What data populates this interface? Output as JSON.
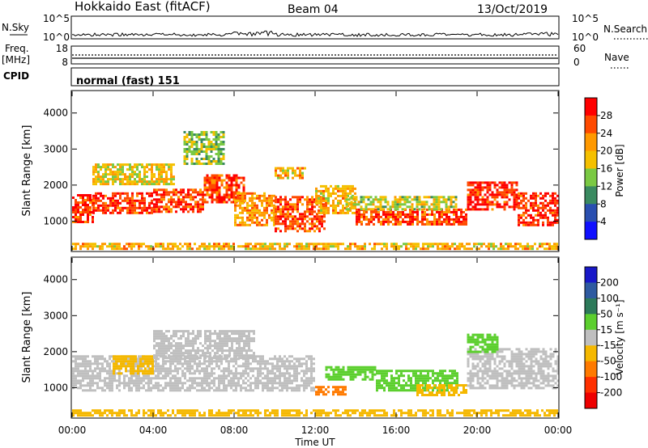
{
  "header": {
    "title": "Hokkaido East (fitACF)",
    "beam": "Beam 04",
    "date": "13/Oct/2019"
  },
  "panels": {
    "nsky_label": "N.Sky",
    "nsky_ticks": [
      "10^5",
      "10^0"
    ],
    "nsearch_label": "N.Search",
    "nsearch_ticks": [
      "10^5",
      "10^0"
    ],
    "freq_label_1": "Freq.",
    "freq_label_2": "[MHz]",
    "freq_ticks": [
      "18",
      "8"
    ],
    "nave_label": "Nave",
    "nave_ticks": [
      "60",
      "0"
    ],
    "cpid_label": "CPID",
    "cpid_value": "normal (fast) 151"
  },
  "axes": {
    "ylabel": "Slant Range [km]",
    "yticks": [
      "4000",
      "3000",
      "2000",
      "1000"
    ],
    "xlabel": "Time UT",
    "xticks": [
      "00:00",
      "04:00",
      "08:00",
      "12:00",
      "16:00",
      "20:00",
      "00:00"
    ]
  },
  "colorbars": {
    "power": {
      "label": "Power [dB]",
      "ticks": [
        "28",
        "24",
        "20",
        "16",
        "12",
        "8",
        "4"
      ],
      "colors": [
        "#ff0000",
        "#ff4a00",
        "#ff9900",
        "#f5c000",
        "#7ac943",
        "#3a8a60",
        "#2a4fb0",
        "#1010ff"
      ]
    },
    "velocity": {
      "label": "Velocity [m s⁻¹]",
      "ticks": [
        "200",
        "100",
        "50",
        "15",
        "-15",
        "-50",
        "-100",
        "-200"
      ],
      "colors": [
        "#1818c8",
        "#2e5aa0",
        "#2d7a5a",
        "#5ccf2e",
        "#bfbfbf",
        "#f5b800",
        "#ff7a00",
        "#ff3000",
        "#ee0000"
      ]
    }
  },
  "chart_data": [
    {
      "type": "heatmap",
      "title": "",
      "ylabel": "Slant Range [km]",
      "xlabel": "",
      "x_range_hours": [
        0,
        24
      ],
      "y_range_km": [
        180,
        4600
      ],
      "color_variable": "Power [dB]",
      "bands": [
        {
          "t0": 0.0,
          "t1": 1.0,
          "r0": 1000,
          "r1": 1750,
          "value": 28
        },
        {
          "t0": 1.0,
          "t1": 4.0,
          "r0": 1200,
          "r1": 1800,
          "value": 28
        },
        {
          "t0": 4.0,
          "t1": 6.5,
          "r0": 1250,
          "r1": 1900,
          "value": 27
        },
        {
          "t0": 6.5,
          "t1": 8.5,
          "r0": 1500,
          "r1": 2300,
          "value": 27
        },
        {
          "t0": 8.0,
          "t1": 10.0,
          "r0": 900,
          "r1": 1800,
          "value": 22
        },
        {
          "t0": 10.0,
          "t1": 12.5,
          "r0": 700,
          "r1": 1700,
          "value": 26
        },
        {
          "t0": 12.0,
          "t1": 14.0,
          "r0": 1200,
          "r1": 2000,
          "value": 20
        },
        {
          "t0": 14.0,
          "t1": 19.5,
          "r0": 900,
          "r1": 1350,
          "value": 27
        },
        {
          "t0": 13.5,
          "t1": 19.0,
          "r0": 1350,
          "r1": 1700,
          "value": 16
        },
        {
          "t0": 19.5,
          "t1": 22.0,
          "r0": 1300,
          "r1": 2100,
          "value": 28
        },
        {
          "t0": 22.0,
          "t1": 24.0,
          "r0": 900,
          "r1": 1800,
          "value": 28
        },
        {
          "t0": 5.5,
          "t1": 7.5,
          "r0": 2600,
          "r1": 3500,
          "value": 14
        },
        {
          "t0": 1.0,
          "t1": 5.0,
          "r0": 2000,
          "r1": 2600,
          "value": 18
        },
        {
          "t0": 10.0,
          "t1": 11.5,
          "r0": 2200,
          "r1": 2500,
          "value": 20
        },
        {
          "t0": 0.0,
          "t1": 24.0,
          "r0": 200,
          "r1": 400,
          "value": 20
        }
      ]
    },
    {
      "type": "heatmap",
      "title": "",
      "ylabel": "Slant Range [km]",
      "xlabel": "Time UT",
      "x_range_hours": [
        0,
        24
      ],
      "y_range_km": [
        180,
        4600
      ],
      "color_variable": "Velocity [m s-1]",
      "bands": [
        {
          "t0": 0.0,
          "t1": 12.0,
          "r0": 900,
          "r1": 1900,
          "value": 0
        },
        {
          "t0": 2.0,
          "t1": 4.0,
          "r0": 1400,
          "r1": 1900,
          "value": -30
        },
        {
          "t0": 12.5,
          "t1": 15.0,
          "r0": 1200,
          "r1": 1600,
          "value": 30
        },
        {
          "t0": 15.0,
          "t1": 19.0,
          "r0": 900,
          "r1": 1500,
          "value": 30
        },
        {
          "t0": 17.0,
          "t1": 19.5,
          "r0": 800,
          "r1": 1100,
          "value": -30
        },
        {
          "t0": 12.0,
          "t1": 13.5,
          "r0": 800,
          "r1": 1050,
          "value": -80
        },
        {
          "t0": 19.5,
          "t1": 24.0,
          "r0": 1000,
          "r1": 2100,
          "value": 0
        },
        {
          "t0": 19.5,
          "t1": 21.0,
          "r0": 2000,
          "r1": 2500,
          "value": 30
        },
        {
          "t0": 4.0,
          "t1": 9.0,
          "r0": 1800,
          "r1": 2600,
          "value": 0
        },
        {
          "t0": 0.0,
          "t1": 24.0,
          "r0": 200,
          "r1": 400,
          "value": -30
        }
      ]
    }
  ]
}
